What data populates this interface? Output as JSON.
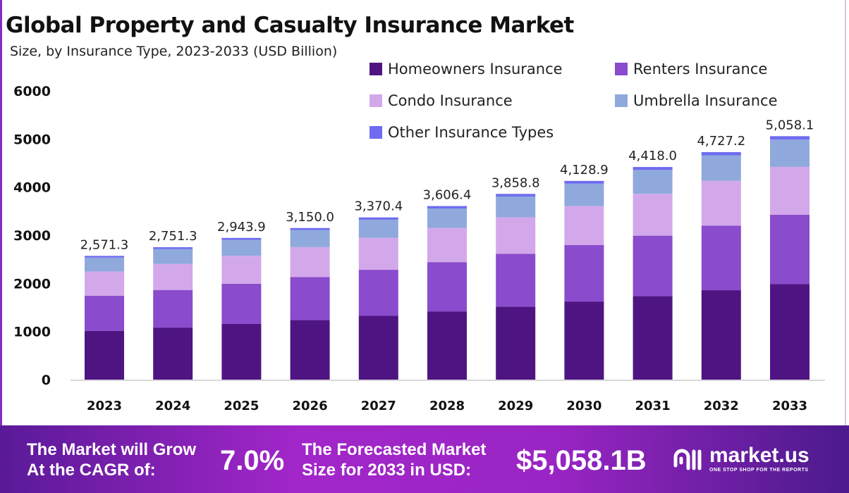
{
  "chart_data": {
    "type": "bar",
    "stacked": true,
    "title": "Global Property and Casualty Insurance Market",
    "subtitle": "Size, by Insurance Type, 2023-2033 (USD Billion)",
    "categories": [
      "2023",
      "2024",
      "2025",
      "2026",
      "2027",
      "2028",
      "2029",
      "2030",
      "2031",
      "2032",
      "2033"
    ],
    "series": [
      {
        "name": "Homeowners Insurance",
        "color": "#4e1582",
        "values": [
          1010.5,
          1081.3,
          1156.9,
          1238.0,
          1324.6,
          1417.3,
          1516.5,
          1622.7,
          1736.3,
          1857.8,
          1987.8
        ]
      },
      {
        "name": "Renters Insurance",
        "color": "#8a4bcc",
        "values": [
          730.2,
          781.4,
          836.1,
          894.6,
          957.2,
          1024.2,
          1095.9,
          1172.6,
          1254.7,
          1342.5,
          1436.5
        ]
      },
      {
        "name": "Condo Insurance",
        "color": "#d3a8ea",
        "values": [
          506.5,
          542.0,
          579.9,
          620.6,
          664.0,
          710.5,
          760.2,
          813.4,
          870.3,
          931.3,
          996.4
        ]
      },
      {
        "name": "Umbrella Insurance",
        "color": "#8fa9dc",
        "values": [
          288.0,
          308.1,
          329.7,
          352.8,
          377.5,
          403.9,
          432.2,
          462.4,
          494.8,
          529.4,
          566.5
        ]
      },
      {
        "name": "Other Insurance Types",
        "color": "#6f6cf0",
        "values": [
          36.1,
          38.5,
          41.3,
          44.0,
          47.1,
          50.5,
          54.0,
          57.8,
          61.9,
          66.2,
          70.9
        ]
      }
    ],
    "totals": [
      "2,571.3",
      "2,751.3",
      "2,943.9",
      "3,150.0",
      "3,370.4",
      "3,606.4",
      "3,858.8",
      "4,128.9",
      "4,418.0",
      "4,727.2",
      "5,058.1"
    ],
    "yticks": [
      "0",
      "1000",
      "2000",
      "3000",
      "4000",
      "5000",
      "6000"
    ],
    "ylim": [
      0,
      6000
    ],
    "grid": false,
    "legend_position": "top-right"
  },
  "footer": {
    "cagr_label_1": "The Market will Grow",
    "cagr_label_2": "At the CAGR of:",
    "cagr_value": "7.0%",
    "size_label_1": "The Forecasted Market",
    "size_label_2": "Size for 2033 in USD:",
    "size_value": "$5,058.1B",
    "brand": "market.us",
    "tagline": "ONE STOP SHOP FOR THE REPORTS"
  }
}
